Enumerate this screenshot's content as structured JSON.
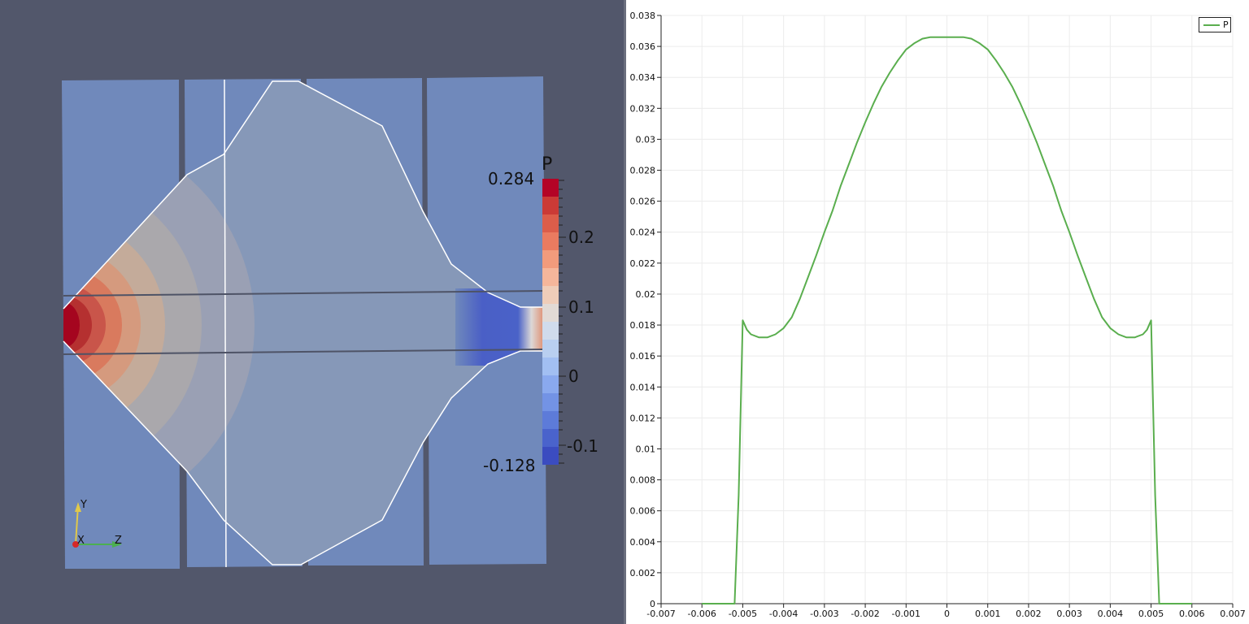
{
  "render_view": {
    "colorbar": {
      "title": "P",
      "max_label": "0.284",
      "min_label": "-0.128",
      "tick_labels": [
        "0.2",
        "0.1",
        "0",
        "-0.1"
      ]
    },
    "orientation_axes": {
      "x": "X",
      "y": "Y",
      "z": "Z"
    },
    "colors": {
      "background": "#52576b",
      "domain": "#7089bb",
      "cavity": "#8698b8",
      "outline": "#ffffff",
      "hot": "#b40426",
      "cold": "#3b4cc0"
    }
  },
  "chart_data": {
    "type": "line",
    "title": "",
    "xlabel": "",
    "ylabel": "",
    "xlim": [
      -0.007,
      0.007
    ],
    "ylim": [
      0,
      0.038
    ],
    "x_ticks": [
      "-0.007",
      "-0.006",
      "-0.005",
      "-0.004",
      "-0.003",
      "-0.002",
      "-0.001",
      "0",
      "0.001",
      "0.002",
      "0.003",
      "0.004",
      "0.005",
      "0.006",
      "0.007"
    ],
    "y_ticks": [
      "0",
      "0.002",
      "0.004",
      "0.006",
      "0.008",
      "0.01",
      "0.012",
      "0.014",
      "0.016",
      "0.018",
      "0.02",
      "0.022",
      "0.024",
      "0.026",
      "0.028",
      "0.03",
      "0.032",
      "0.034",
      "0.036",
      "0.038"
    ],
    "grid": true,
    "legend_position": "top-right",
    "series": [
      {
        "name": "P",
        "color": "#5aae4e",
        "x": [
          -0.006,
          -0.0052,
          -0.0051,
          -0.005,
          -0.0049,
          -0.0048,
          -0.0046,
          -0.0044,
          -0.0042,
          -0.004,
          -0.0038,
          -0.0036,
          -0.0034,
          -0.0032,
          -0.003,
          -0.0028,
          -0.0026,
          -0.0024,
          -0.0022,
          -0.002,
          -0.0018,
          -0.0016,
          -0.0014,
          -0.0012,
          -0.001,
          -0.0008,
          -0.0006,
          -0.0004,
          -0.0002,
          0,
          0.0002,
          0.0004,
          0.0006,
          0.0008,
          0.001,
          0.0012,
          0.0014,
          0.0016,
          0.0018,
          0.002,
          0.0022,
          0.0024,
          0.0026,
          0.0028,
          0.003,
          0.0032,
          0.0034,
          0.0036,
          0.0038,
          0.004,
          0.0042,
          0.0044,
          0.0046,
          0.0048,
          0.0049,
          0.005,
          0.0051,
          0.0052,
          0.006
        ],
        "y": [
          0,
          0,
          0.007,
          0.0183,
          0.0177,
          0.0174,
          0.0172,
          0.0172,
          0.0174,
          0.0178,
          0.0185,
          0.0197,
          0.0211,
          0.0225,
          0.024,
          0.0254,
          0.027,
          0.0284,
          0.0298,
          0.0311,
          0.0323,
          0.0334,
          0.0343,
          0.0351,
          0.0358,
          0.0362,
          0.0365,
          0.0366,
          0.0366,
          0.0366,
          0.0366,
          0.0366,
          0.0365,
          0.0362,
          0.0358,
          0.0351,
          0.0343,
          0.0334,
          0.0323,
          0.0311,
          0.0298,
          0.0284,
          0.027,
          0.0254,
          0.024,
          0.0225,
          0.0211,
          0.0197,
          0.0185,
          0.0178,
          0.0174,
          0.0172,
          0.0172,
          0.0174,
          0.0177,
          0.0183,
          0.007,
          0,
          0
        ]
      }
    ]
  }
}
